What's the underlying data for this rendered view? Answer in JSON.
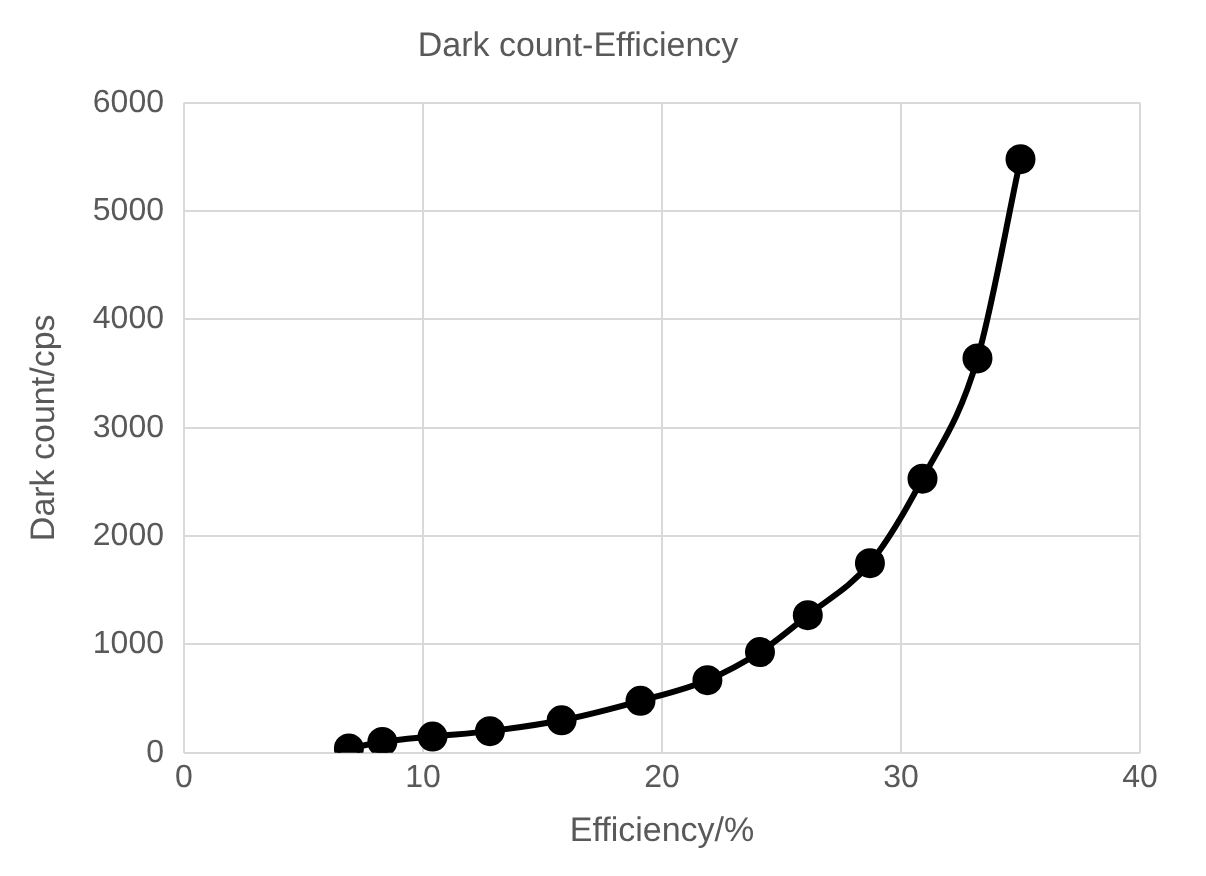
{
  "chart_data": {
    "type": "line",
    "title": "Dark count-Efficiency",
    "xlabel": "Efficiency/%",
    "ylabel": "Dark count/cps",
    "x": [
      6.9,
      8.3,
      10.4,
      12.8,
      15.8,
      19.1,
      21.9,
      24.1,
      26.1,
      28.7,
      30.9,
      33.2,
      35.0
    ],
    "series": [
      {
        "color": "#000000",
        "values": [
          40,
          100,
          150,
          200,
          300,
          480,
          670,
          930,
          1270,
          1750,
          2530,
          3640,
          5480
        ]
      }
    ],
    "xlim": [
      0,
      40
    ],
    "xticks": [
      0,
      10,
      20,
      30,
      40
    ],
    "ylim": [
      0,
      6000
    ],
    "yticks": [
      0,
      1000,
      2000,
      3000,
      4000,
      5000,
      6000
    ],
    "grid": true,
    "marker": "circle",
    "line_style": "solid"
  }
}
